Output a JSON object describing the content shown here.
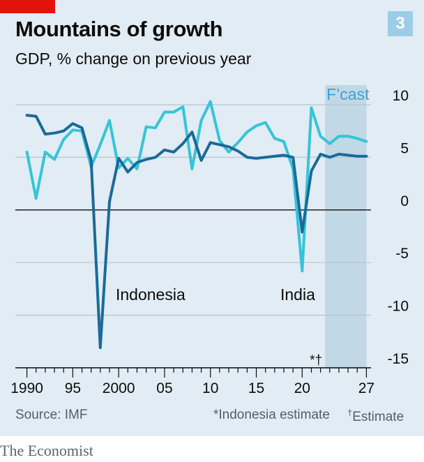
{
  "header": {
    "title": "Mountains of growth",
    "subtitle": "GDP, % change on previous year",
    "badge": "3"
  },
  "footer": {
    "source": "Source: IMF",
    "note_indonesia": "*Indonesia estimate",
    "note_estimate_mark": "†",
    "note_estimate_text": "Estimate"
  },
  "brand": "The Economist",
  "colors": {
    "india": "#36c4d8",
    "indonesia": "#1a6a9a",
    "forecast_band": "#c1d8e6",
    "background": "#e1ecf4",
    "accent": "#e3120b"
  },
  "chart_data": {
    "type": "line",
    "forecast_label": "F’cast",
    "forecast_range": [
      2023,
      2027
    ],
    "x_ticks": [
      1990,
      1995,
      2000,
      2005,
      2010,
      2015,
      2020,
      2027
    ],
    "x_tick_labels": [
      "1990",
      "95",
      "2000",
      "05",
      "10",
      "15",
      "20",
      "27"
    ],
    "y_ticks": [
      10,
      5,
      0,
      -5,
      -10,
      -15
    ],
    "y_tick_labels": [
      "10",
      "5",
      "0",
      "-5",
      "-10",
      "-15"
    ],
    "xlim": [
      1989.5,
      2027.5
    ],
    "ylim": [
      -15,
      10
    ],
    "estimate_markers": "*†",
    "series": [
      {
        "name": "India",
        "color_key": "india",
        "x": [
          1990,
          1991,
          1992,
          1993,
          1994,
          1995,
          1996,
          1997,
          1998,
          1999,
          2000,
          2001,
          2002,
          2003,
          2004,
          2005,
          2006,
          2007,
          2008,
          2009,
          2010,
          2011,
          2012,
          2013,
          2014,
          2015,
          2016,
          2017,
          2018,
          2019,
          2020,
          2021,
          2022,
          2023,
          2024,
          2025,
          2026,
          2027
        ],
        "y": [
          5.5,
          1.1,
          5.5,
          4.8,
          6.7,
          7.6,
          7.5,
          4.1,
          6.2,
          8.5,
          4.0,
          4.9,
          3.9,
          7.9,
          7.8,
          9.3,
          9.3,
          9.8,
          3.9,
          8.5,
          10.3,
          6.6,
          5.5,
          6.4,
          7.4,
          8.0,
          8.3,
          6.8,
          6.5,
          3.9,
          -5.8,
          9.7,
          7.0,
          6.3,
          7.0,
          7.0,
          6.8,
          6.5
        ]
      },
      {
        "name": "Indonesia",
        "color_key": "indonesia",
        "x": [
          1990,
          1991,
          1992,
          1993,
          1994,
          1995,
          1996,
          1997,
          1998,
          1999,
          2000,
          2001,
          2002,
          2003,
          2004,
          2005,
          2006,
          2007,
          2008,
          2009,
          2010,
          2011,
          2012,
          2013,
          2014,
          2015,
          2016,
          2017,
          2018,
          2019,
          2020,
          2021,
          2022,
          2023,
          2024,
          2025,
          2026,
          2027
        ],
        "y": [
          9.0,
          8.9,
          7.2,
          7.3,
          7.5,
          8.2,
          7.8,
          4.7,
          -13.1,
          0.8,
          4.9,
          3.6,
          4.5,
          4.8,
          5.0,
          5.7,
          5.5,
          6.3,
          7.4,
          4.7,
          6.4,
          6.2,
          6.0,
          5.6,
          5.0,
          4.9,
          5.0,
          5.1,
          5.2,
          5.0,
          -2.1,
          3.7,
          5.3,
          5.0,
          5.3,
          5.2,
          5.1,
          5.1
        ]
      }
    ],
    "line_labels": [
      {
        "text": "Indonesia",
        "series": "Indonesia"
      },
      {
        "text": "India",
        "series": "India"
      }
    ]
  }
}
